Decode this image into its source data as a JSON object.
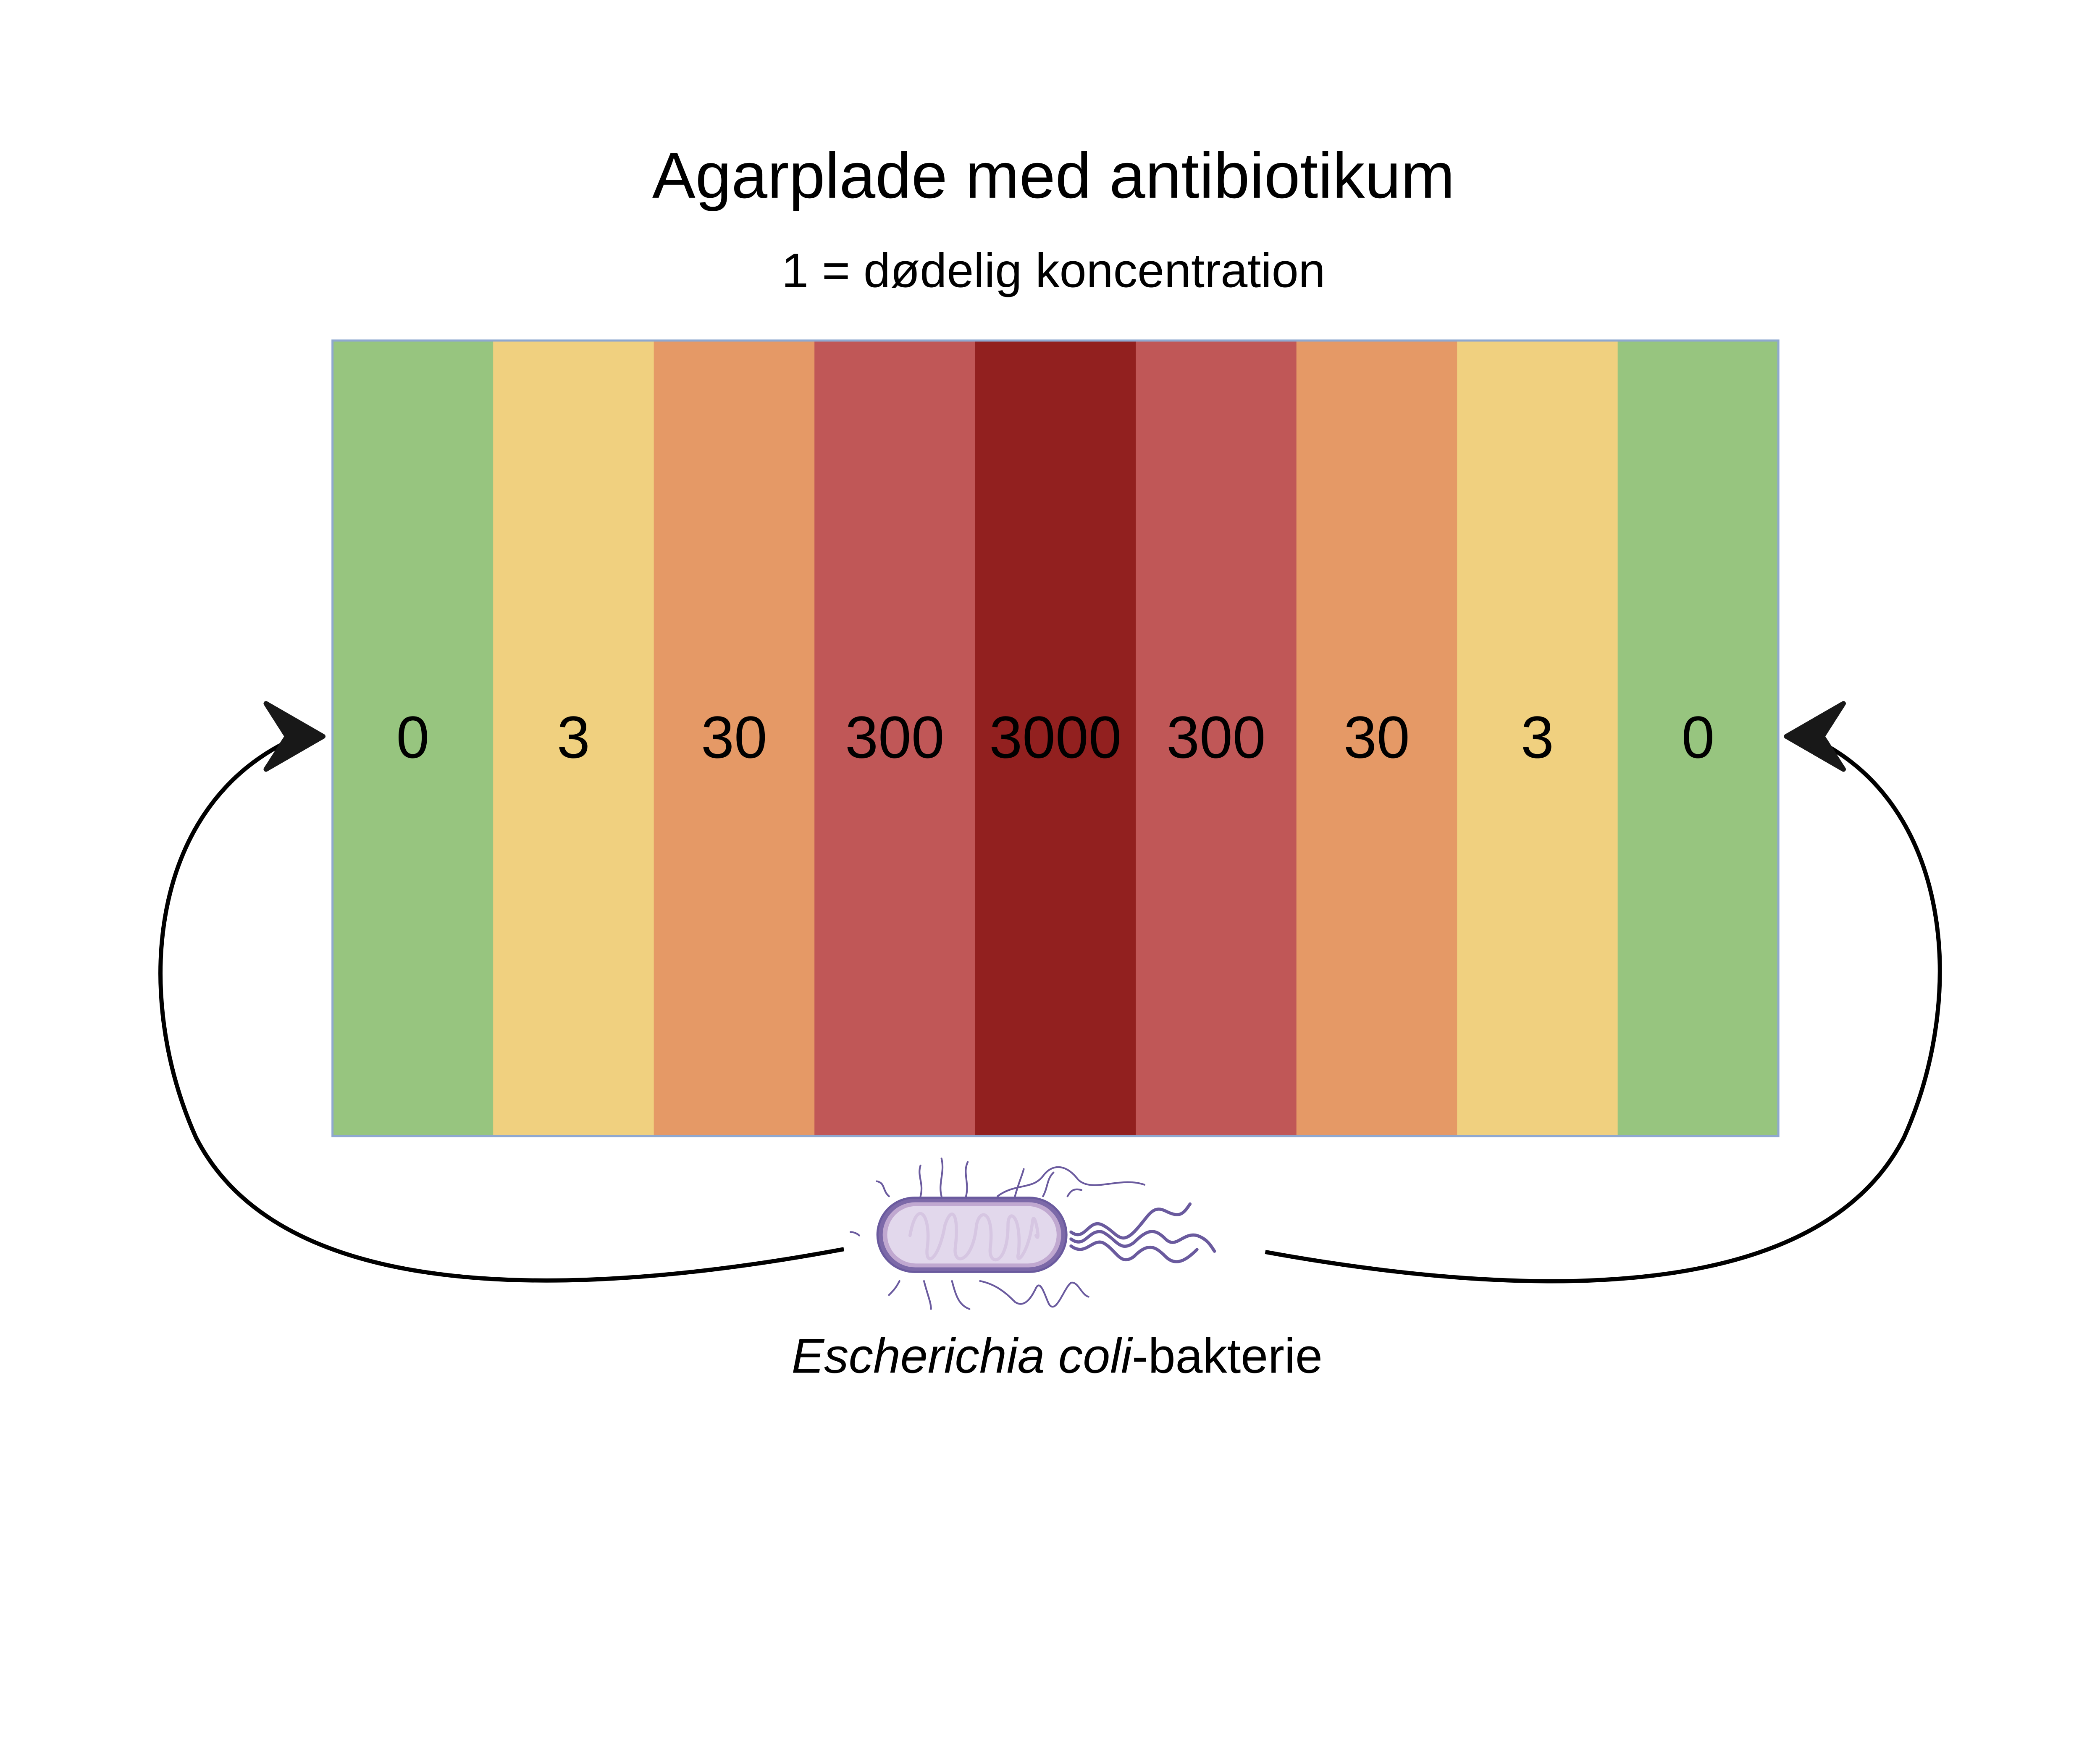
{
  "title": "Agarplade med antibiotikum",
  "subtitle": "1 = dødelig koncentration",
  "plate": {
    "zones": [
      {
        "label": "0",
        "color": "#97c57f"
      },
      {
        "label": "3",
        "color": "#f0d07f"
      },
      {
        "label": "30",
        "color": "#e59966"
      },
      {
        "label": "300",
        "color": "#c05757"
      },
      {
        "label": "3000",
        "color": "#92201f"
      },
      {
        "label": "300",
        "color": "#c05757"
      },
      {
        "label": "30",
        "color": "#e59966"
      },
      {
        "label": "3",
        "color": "#f0d07f"
      },
      {
        "label": "0",
        "color": "#97c57f"
      }
    ],
    "border_color": "#8fa8d0"
  },
  "caption": {
    "italic": "Escherichia coli",
    "rest": "-bakterie"
  },
  "colors": {
    "arrow": "#000000",
    "bacterium_outline": "#6a5a9e",
    "bacterium_fill": "#e2d8ec",
    "bacterium_membrane": "#c0a8d0"
  },
  "icons": {
    "bacterium": "e-coli-bacterium-icon",
    "arrow_left": "curved-arrow-icon",
    "arrow_right": "curved-arrow-icon"
  }
}
